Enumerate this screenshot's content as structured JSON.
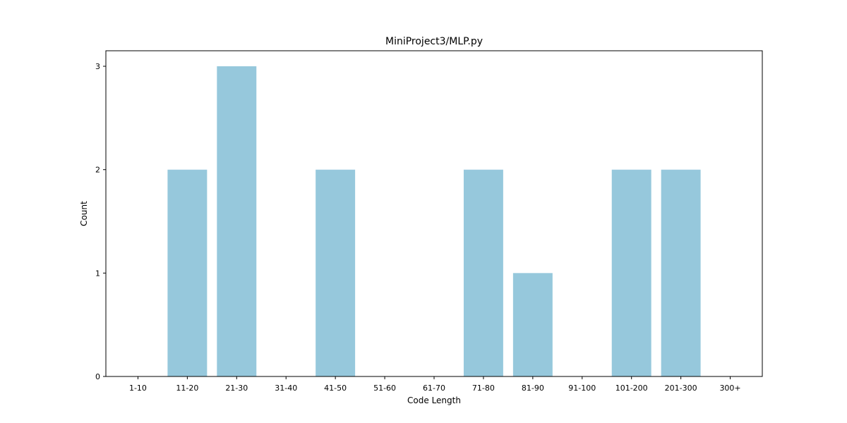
{
  "chart_data": {
    "type": "bar",
    "title": "MiniProject3/MLP.py",
    "xlabel": "Code Length",
    "ylabel": "Count",
    "categories": [
      "1-10",
      "11-20",
      "21-30",
      "31-40",
      "41-50",
      "51-60",
      "61-70",
      "71-80",
      "81-90",
      "91-100",
      "101-200",
      "201-300",
      "300+"
    ],
    "values": [
      0,
      2,
      3,
      0,
      2,
      0,
      0,
      2,
      1,
      0,
      2,
      2,
      0
    ],
    "ylim": [
      0,
      3.15
    ],
    "yticks": [
      0,
      1,
      2,
      3
    ],
    "bar_color": "#96c8dc",
    "grid": false,
    "legend": "none"
  }
}
